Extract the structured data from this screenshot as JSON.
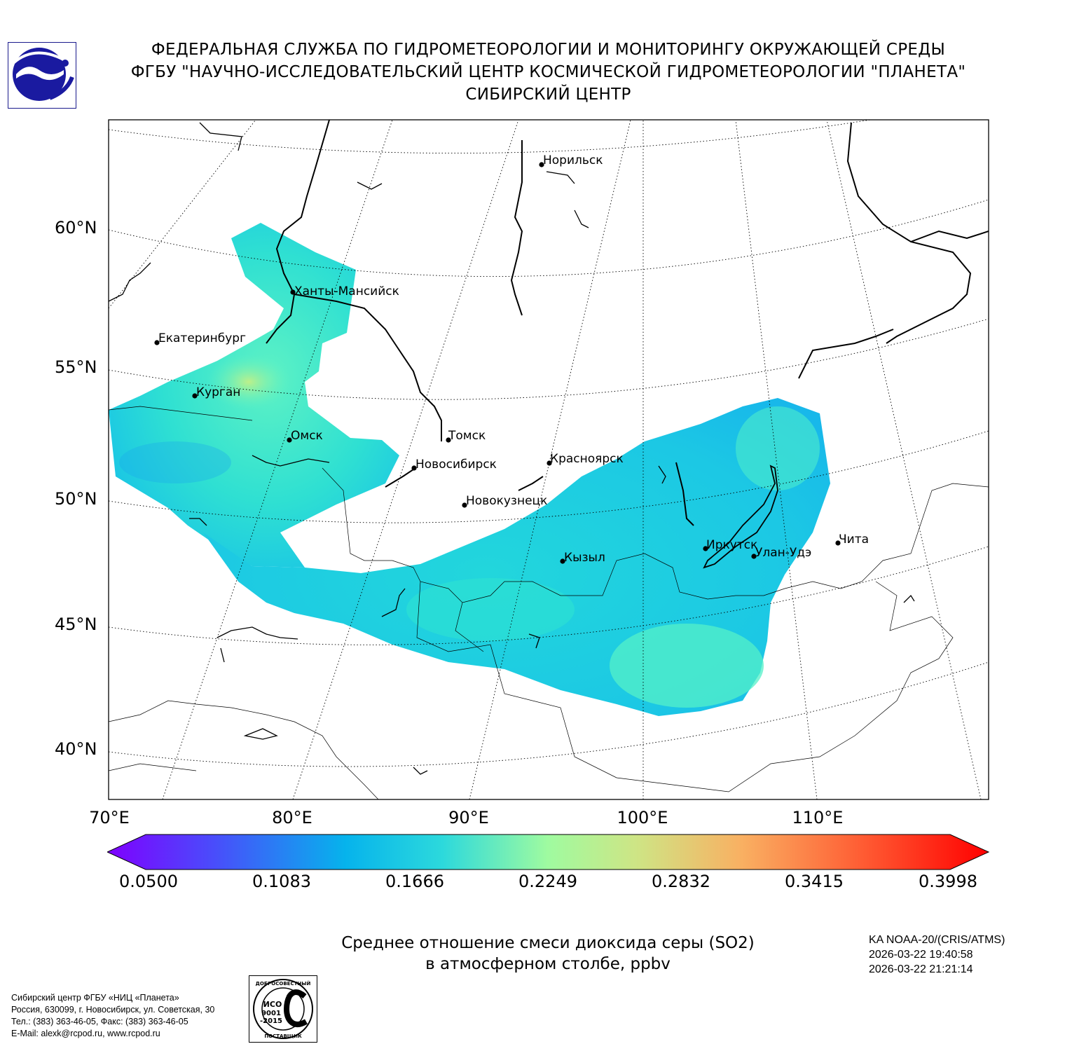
{
  "header": {
    "line1": "ФЕДЕРАЛЬНАЯ СЛУЖБА ПО ГИДРОМЕТЕОРОЛОГИИ И МОНИТОРИНГУ ОКРУЖАЮЩЕЙ СРЕДЫ",
    "line2": "ФГБУ \"НАУЧНО-ИССЛЕДОВАТЕЛЬСКИЙ ЦЕНТР КОСМИЧЕСКОЙ ГИДРОМЕТЕОРОЛОГИИ \"ПЛАНЕТА\"",
    "line3": "СИБИРСКИЙ ЦЕНТР"
  },
  "map": {
    "lat_labels": [
      "60°N",
      "55°N",
      "50°N",
      "45°N",
      "40°N"
    ],
    "lon_labels": [
      "70°E",
      "80°E",
      "90°E",
      "100°E",
      "110°E"
    ],
    "cities": [
      "Норильск",
      "Ханты-Мансийск",
      "Екатеринбург",
      "Курган",
      "Омск",
      "Томск",
      "Новосибирск",
      "Красноярск",
      "Новокузнецк",
      "Иркутск",
      "Улан-Удэ",
      "Чита",
      "Кызыл"
    ]
  },
  "colorbar": {
    "ticks": [
      "0.0500",
      "0.1083",
      "0.1666",
      "0.2249",
      "0.2832",
      "0.3415",
      "0.3998"
    ],
    "colors": {
      "min": "#7f00ff",
      "low": "#3a6ff7",
      "mid_low": "#18c3e6",
      "mid": "#9ffba0",
      "mid_high": "#f9b062",
      "max": "#ff0000"
    }
  },
  "caption": {
    "line1": "Среднее отношение смеси диоксида серы (SO2)",
    "line2": "в атмосферном столбе, ppbv"
  },
  "satellite": {
    "line1": "KA NOAA-20/(CRIS/ATMS)",
    "line2": "2026-03-22 19:40:58",
    "line3": "2026-03-22 21:21:14"
  },
  "contacts": {
    "line1": "Сибирский центр ФГБУ «НИЦ «Планета»",
    "line2": "Россия, 630099, г. Новосибирск, ул. Советская, 30",
    "line3": "Тел.: (383) 363-46-05, Факс: (383) 363-46-05",
    "line4": "E-Mail: alexk@rcpod.ru, www.rcpod.ru"
  },
  "stamp": {
    "top": "ДОБРОСОВЕСТНЫЙ",
    "iso": "ИСО",
    "num": "9001",
    "year": "-2015",
    "bottom": "ПОСТАВЩИК"
  },
  "icons": [
    "roshydromet-logo-icon",
    "iso-stamp-icon"
  ]
}
